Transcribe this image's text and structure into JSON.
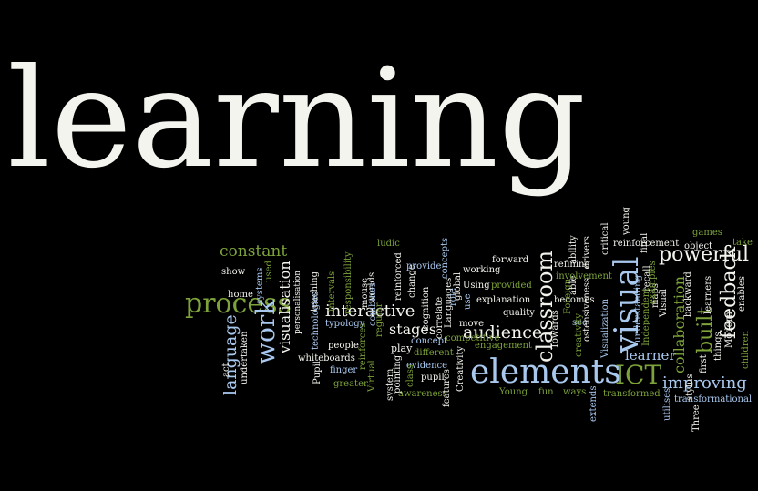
{
  "colors": {
    "background": "#000000",
    "white": "#f4f4ee",
    "green": "#7da33a",
    "blue": "#a8c8ee",
    "light": "#d8d8d2"
  },
  "words": [
    {
      "id": "learning",
      "text": "learning",
      "color": "white"
    },
    {
      "id": "elements",
      "text": "elements",
      "color": "blue"
    },
    {
      "id": "ict",
      "text": "ICT",
      "color": "green"
    },
    {
      "id": "process",
      "text": "process",
      "color": "green"
    },
    {
      "id": "visual",
      "text": "visual",
      "color": "blue"
    },
    {
      "id": "classroom",
      "text": "classroom",
      "color": "white"
    },
    {
      "id": "work",
      "text": "work",
      "color": "blue"
    },
    {
      "id": "audience",
      "text": "audience",
      "color": "white"
    },
    {
      "id": "interactive",
      "text": "interactive",
      "color": "white"
    },
    {
      "id": "powerful",
      "text": "powerful",
      "color": "white"
    },
    {
      "id": "feedback",
      "text": "feedback",
      "color": "white"
    },
    {
      "id": "built",
      "text": "built",
      "color": "green"
    },
    {
      "id": "improving",
      "text": "improving",
      "color": "blue"
    },
    {
      "id": "collaboration",
      "text": "collaboration",
      "color": "green"
    },
    {
      "id": "constant",
      "text": "constant",
      "color": "green"
    },
    {
      "id": "language",
      "text": "language",
      "color": "blue"
    },
    {
      "id": "visualisation",
      "text": "visualisation",
      "color": "white"
    },
    {
      "id": "stages",
      "text": "stages",
      "color": "white"
    },
    {
      "id": "learner",
      "text": "learner",
      "color": "blue"
    },
    {
      "id": "show",
      "text": "show",
      "color": "white"
    },
    {
      "id": "home",
      "text": "home",
      "color": "white"
    },
    {
      "id": "act",
      "text": "act",
      "color": "white"
    },
    {
      "id": "undertaken",
      "text": "undertaken",
      "color": "white"
    },
    {
      "id": "systems",
      "text": "systems",
      "color": "blue"
    },
    {
      "id": "used",
      "text": "used",
      "color": "green"
    },
    {
      "id": "teaching",
      "text": "teaching",
      "color": "white"
    },
    {
      "id": "personalisation",
      "text": "personalisation",
      "color": "white"
    },
    {
      "id": "technologies",
      "text": "technologies",
      "color": "blue"
    },
    {
      "id": "intervals",
      "text": "intervals",
      "color": "green"
    },
    {
      "id": "responsibility",
      "text": "responsibility",
      "color": "green"
    },
    {
      "id": "mouse",
      "text": "mouse",
      "color": "white"
    },
    {
      "id": "worlds",
      "text": "worlds",
      "color": "white"
    },
    {
      "id": "ludic",
      "text": "ludic",
      "color": "green"
    },
    {
      "id": "reinforced",
      "text": "reinforced",
      "color": "white"
    },
    {
      "id": "change",
      "text": "change",
      "color": "white"
    },
    {
      "id": "provide",
      "text": "provide",
      "color": "blue"
    },
    {
      "id": "concepts",
      "text": "concepts",
      "color": "blue"
    },
    {
      "id": "global",
      "text": "global",
      "color": "white"
    },
    {
      "id": "languages",
      "text": "Languages",
      "color": "white"
    },
    {
      "id": "working",
      "text": "working",
      "color": "white"
    },
    {
      "id": "forward",
      "text": "forward",
      "color": "white"
    },
    {
      "id": "using",
      "text": "Using",
      "color": "white"
    },
    {
      "id": "provided",
      "text": "provided",
      "color": "green"
    },
    {
      "id": "explanation",
      "text": "explanation",
      "color": "white"
    },
    {
      "id": "quality",
      "text": "quality",
      "color": "white"
    },
    {
      "id": "typology",
      "text": "typology",
      "color": "blue"
    },
    {
      "id": "people",
      "text": "people",
      "color": "white"
    },
    {
      "id": "whiteboards",
      "text": "whiteboards",
      "color": "white"
    },
    {
      "id": "pupil",
      "text": "Pupil",
      "color": "white"
    },
    {
      "id": "finger",
      "text": "finger",
      "color": "blue"
    },
    {
      "id": "greater",
      "text": "greater",
      "color": "green"
    },
    {
      "id": "virtual",
      "text": "Virtual",
      "color": "green"
    },
    {
      "id": "reinforces",
      "text": "reinforces",
      "color": "green"
    },
    {
      "id": "regular",
      "text": "regular",
      "color": "green"
    },
    {
      "id": "combines",
      "text": "combines",
      "color": "blue"
    },
    {
      "id": "cognition",
      "text": "cognition",
      "color": "white"
    },
    {
      "id": "correlate",
      "text": "correlate",
      "color": "white"
    },
    {
      "id": "role",
      "text": "role",
      "color": "blue"
    },
    {
      "id": "use",
      "text": "use",
      "color": "blue"
    },
    {
      "id": "move",
      "text": "move",
      "color": "white"
    },
    {
      "id": "competitive",
      "text": "competitive",
      "color": "green"
    },
    {
      "id": "engagement",
      "text": "engagement",
      "color": "green"
    },
    {
      "id": "concept",
      "text": "concept",
      "color": "blue"
    },
    {
      "id": "different",
      "text": "different",
      "color": "green"
    },
    {
      "id": "evidence",
      "text": "evidence",
      "color": "blue"
    },
    {
      "id": "play",
      "text": "play",
      "color": "white"
    },
    {
      "id": "pointing",
      "text": "pointing",
      "color": "white"
    },
    {
      "id": "system",
      "text": "system",
      "color": "white"
    },
    {
      "id": "class",
      "text": "class",
      "color": "green"
    },
    {
      "id": "awareness",
      "text": "awareness",
      "color": "green"
    },
    {
      "id": "pupil2",
      "text": "pupil",
      "color": "white"
    },
    {
      "id": "features",
      "text": "features",
      "color": "white"
    },
    {
      "id": "creativity",
      "text": "Creativity",
      "color": "white"
    },
    {
      "id": "young",
      "text": "Young",
      "color": "green"
    },
    {
      "id": "fun",
      "text": "fun",
      "color": "green"
    },
    {
      "id": "ways",
      "text": "ways",
      "color": "green"
    },
    {
      "id": "towards",
      "text": "Towards",
      "color": "white"
    },
    {
      "id": "refining",
      "text": "refining",
      "color": "white"
    },
    {
      "id": "becomes",
      "text": "becomes",
      "color": "white"
    },
    {
      "id": "see",
      "text": "see",
      "color": "blue"
    },
    {
      "id": "foreign",
      "text": "Foreign",
      "color": "green"
    },
    {
      "id": "creativity2",
      "text": "creativity",
      "color": "green"
    },
    {
      "id": "able",
      "text": "able",
      "color": "white"
    },
    {
      "id": "ability",
      "text": "ability",
      "color": "white"
    },
    {
      "id": "drivers",
      "text": "drivers",
      "color": "white"
    },
    {
      "id": "ostensiveness",
      "text": "ostensiveness",
      "color": "white"
    },
    {
      "id": "involvement",
      "text": "involvement",
      "color": "green"
    },
    {
      "id": "critical",
      "text": "critical",
      "color": "white"
    },
    {
      "id": "visualization",
      "text": "Visualization",
      "color": "blue"
    },
    {
      "id": "extends",
      "text": "extends",
      "color": "blue"
    },
    {
      "id": "transformed",
      "text": "transformed",
      "color": "green"
    },
    {
      "id": "understanding",
      "text": "understanding",
      "color": "blue"
    },
    {
      "id": "recall",
      "text": "recall",
      "color": "white"
    },
    {
      "id": "independent",
      "text": "Independent",
      "color": "green"
    },
    {
      "id": "maps",
      "text": "maps",
      "color": "white"
    },
    {
      "id": "visual2",
      "text": "Visual",
      "color": "white"
    },
    {
      "id": "young2",
      "text": "young",
      "color": "white"
    },
    {
      "id": "final",
      "text": "final",
      "color": "white"
    },
    {
      "id": "reinforcement",
      "text": "reinforcement",
      "color": "white"
    },
    {
      "id": "examples",
      "text": "examples",
      "color": "green"
    },
    {
      "id": "object",
      "text": "object",
      "color": "white"
    },
    {
      "id": "games",
      "text": "games",
      "color": "green"
    },
    {
      "id": "take",
      "text": "take",
      "color": "green"
    },
    {
      "id": "backward",
      "text": "backward",
      "color": "white"
    },
    {
      "id": "learners",
      "text": "learners",
      "color": "white"
    },
    {
      "id": "first",
      "text": "first",
      "color": "white"
    },
    {
      "id": "things",
      "text": "things",
      "color": "white"
    },
    {
      "id": "modern",
      "text": "Modern",
      "color": "white"
    },
    {
      "id": "enables",
      "text": "enables",
      "color": "white"
    },
    {
      "id": "children",
      "text": "children",
      "color": "green"
    },
    {
      "id": "stylus",
      "text": "stylus",
      "color": "white"
    },
    {
      "id": "utilises",
      "text": "utilises",
      "color": "blue"
    },
    {
      "id": "three",
      "text": "Three",
      "color": "white"
    },
    {
      "id": "transformational",
      "text": "transformational",
      "color": "blue"
    }
  ]
}
